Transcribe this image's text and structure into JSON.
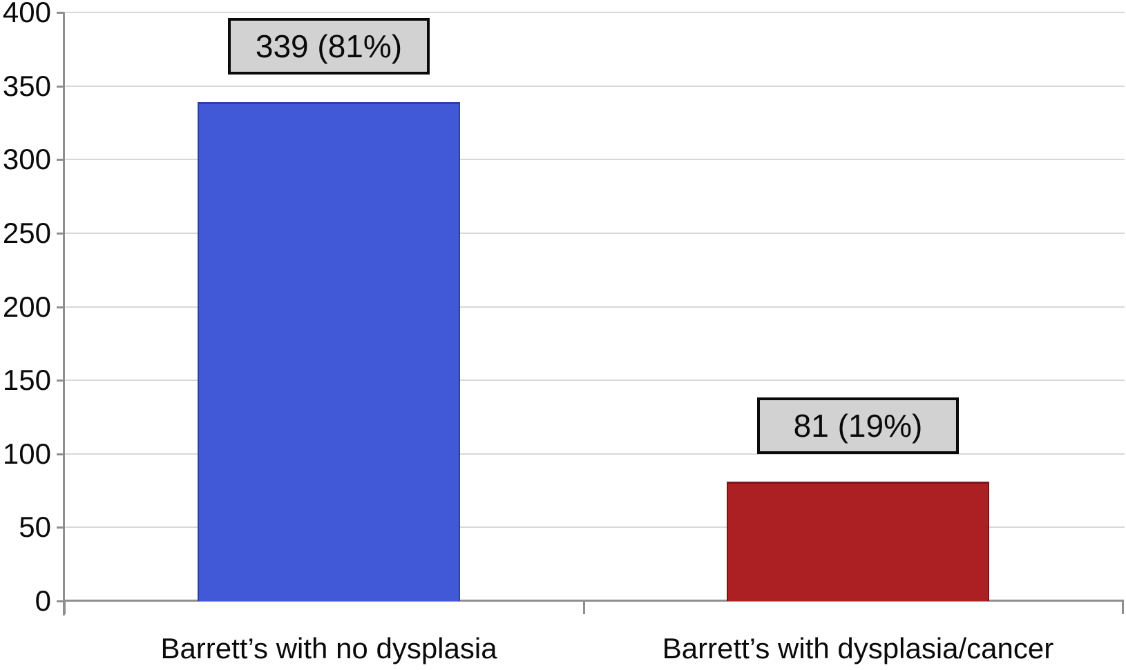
{
  "figure": {
    "background": "#ffffff",
    "axis_color": "#8f8f8f",
    "gridline_color": "#d8d8d8",
    "text_color": "#0a0a0a",
    "label_box_fill": "#d2d2d2",
    "label_box_border": "#0a0a0a"
  },
  "chart_data": {
    "type": "bar",
    "categories": [
      "Barrett’s with no dysplasia",
      "Barrett’s with dysplasia/cancer"
    ],
    "values": [
      339,
      81
    ],
    "bar_labels": [
      "339 (81%)",
      "81 (19%)"
    ],
    "bar_colors": [
      "#4159d6",
      "#ac2024"
    ],
    "bar_border_colors": [
      "#2c3ea8",
      "#7e1318"
    ],
    "title": "",
    "xlabel": "",
    "ylabel": "",
    "ylim": [
      0,
      400
    ],
    "yticks": [
      0,
      50,
      100,
      150,
      200,
      250,
      300,
      350,
      400
    ],
    "grid": true,
    "legend": "none"
  }
}
